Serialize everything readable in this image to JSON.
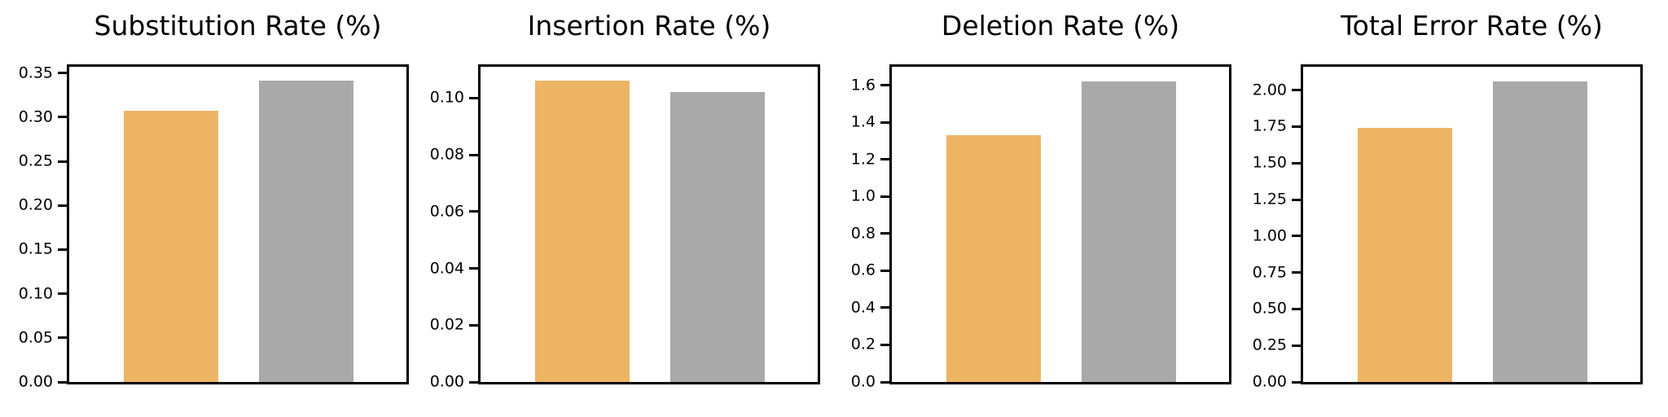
{
  "figure": {
    "background": "#ffffff",
    "bar_colors": {
      "orange": "#EDB464",
      "gray": "#A9A9A9"
    }
  },
  "chart_data": [
    {
      "type": "bar",
      "title": "Substitution Rate (%)",
      "series": [
        {
          "name": "orange-bar",
          "color": "#EDB464",
          "value": 0.307
        },
        {
          "name": "gray-bar",
          "color": "#A9A9A9",
          "value": 0.341
        }
      ],
      "ylim": [
        0,
        0.357
      ],
      "yticks": [
        "0.00",
        "0.05",
        "0.10",
        "0.15",
        "0.20",
        "0.25",
        "0.30",
        "0.35"
      ],
      "xlabel": "",
      "ylabel": "",
      "x_tick_labels": [],
      "grid": false,
      "legend": null
    },
    {
      "type": "bar",
      "title": "Insertion Rate (%)",
      "series": [
        {
          "name": "orange-bar",
          "color": "#EDB464",
          "value": 0.106
        },
        {
          "name": "gray-bar",
          "color": "#A9A9A9",
          "value": 0.102
        }
      ],
      "ylim": [
        0,
        0.111
      ],
      "yticks": [
        "0.00",
        "0.02",
        "0.04",
        "0.06",
        "0.08",
        "0.10"
      ],
      "xlabel": "",
      "ylabel": "",
      "x_tick_labels": [],
      "grid": false,
      "legend": null
    },
    {
      "type": "bar",
      "title": "Deletion Rate (%)",
      "series": [
        {
          "name": "orange-bar",
          "color": "#EDB464",
          "value": 1.33
        },
        {
          "name": "gray-bar",
          "color": "#A9A9A9",
          "value": 1.62
        }
      ],
      "ylim": [
        0,
        1.7
      ],
      "yticks": [
        "0.0",
        "0.2",
        "0.4",
        "0.6",
        "0.8",
        "1.0",
        "1.2",
        "1.4",
        "1.6"
      ],
      "xlabel": "",
      "ylabel": "",
      "x_tick_labels": [],
      "grid": false,
      "legend": null
    },
    {
      "type": "bar",
      "title": "Total Error Rate (%)",
      "series": [
        {
          "name": "orange-bar",
          "color": "#EDB464",
          "value": 1.74
        },
        {
          "name": "gray-bar",
          "color": "#A9A9A9",
          "value": 2.06
        }
      ],
      "ylim": [
        0,
        2.16
      ],
      "yticks": [
        "0.00",
        "0.25",
        "0.50",
        "0.75",
        "1.00",
        "1.25",
        "1.50",
        "1.75",
        "2.00"
      ],
      "xlabel": "",
      "ylabel": "",
      "x_tick_labels": [],
      "grid": false,
      "legend": null
    }
  ]
}
